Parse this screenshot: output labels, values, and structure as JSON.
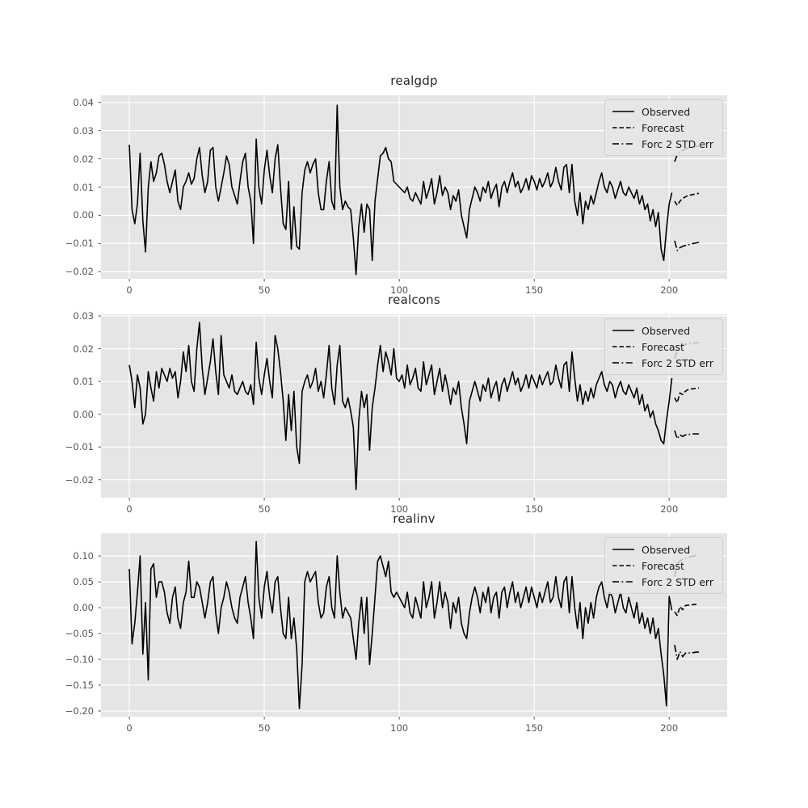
{
  "figure": {
    "background": "#ffffff",
    "axes_background": "#e5e5e5",
    "grid_color": "#ffffff",
    "tick_label_color": "#555555",
    "title_color": "#262626",
    "line_color": "#000000",
    "legend_labels": [
      "Observed",
      "Forecast",
      "Forc 2 STD err"
    ]
  },
  "chart_data": [
    {
      "type": "line",
      "title": "realgdp",
      "xlabel": "",
      "ylabel": "",
      "grid": true,
      "legend": [
        "Observed",
        "Forecast",
        "Forc 2 STD err"
      ],
      "legend_position": "upper right",
      "x_ticks": [
        0,
        50,
        100,
        150,
        200
      ],
      "y_ticks": [
        0.04,
        0.03,
        0.02,
        0.01,
        0.0,
        -0.01,
        -0.02
      ],
      "xlim": [
        -10.5,
        221.5
      ],
      "ylim": [
        -0.0225,
        0.0425
      ],
      "series": [
        {
          "name": "Observed",
          "style": "solid",
          "x_start": 0,
          "values": [
            0.025,
            0.002,
            -0.003,
            0.004,
            0.022,
            -0.002,
            -0.013,
            0.01,
            0.019,
            0.012,
            0.015,
            0.021,
            0.022,
            0.018,
            0.012,
            0.008,
            0.012,
            0.016,
            0.005,
            0.002,
            0.01,
            0.012,
            0.015,
            0.011,
            0.013,
            0.02,
            0.024,
            0.014,
            0.008,
            0.012,
            0.023,
            0.024,
            0.01,
            0.005,
            0.01,
            0.015,
            0.021,
            0.018,
            0.01,
            0.007,
            0.004,
            0.012,
            0.019,
            0.022,
            0.01,
            0.005,
            -0.01,
            0.027,
            0.01,
            0.004,
            0.016,
            0.023,
            0.014,
            0.008,
            0.02,
            0.025,
            0.01,
            -0.003,
            -0.005,
            0.012,
            -0.012,
            0.003,
            -0.011,
            -0.012,
            0.008,
            0.016,
            0.019,
            0.015,
            0.018,
            0.02,
            0.008,
            0.002,
            0.002,
            0.012,
            0.019,
            0.005,
            0.002,
            0.039,
            0.01,
            0.002,
            0.005,
            0.003,
            0.002,
            -0.008,
            -0.021,
            -0.004,
            0.004,
            -0.006,
            0.004,
            0.002,
            -0.016,
            0.005,
            0.013,
            0.021,
            0.022,
            0.024,
            0.02,
            0.019,
            0.012,
            0.011,
            0.01,
            0.009,
            0.008,
            0.01,
            0.006,
            0.005,
            0.008,
            0.006,
            0.004,
            0.012,
            0.006,
            0.009,
            0.013,
            0.004,
            0.008,
            0.014,
            0.007,
            0.01,
            0.008,
            0.002,
            0.007,
            0.005,
            0.009,
            0.0,
            -0.004,
            -0.008,
            0.002,
            0.006,
            0.01,
            0.008,
            0.005,
            0.01,
            0.008,
            0.012,
            0.006,
            0.009,
            0.011,
            0.003,
            0.01,
            0.012,
            0.008,
            0.012,
            0.015,
            0.01,
            0.012,
            0.008,
            0.01,
            0.013,
            0.009,
            0.014,
            0.012,
            0.009,
            0.013,
            0.01,
            0.012,
            0.015,
            0.01,
            0.012,
            0.017,
            0.012,
            0.009,
            0.017,
            0.018,
            0.008,
            0.018,
            0.005,
            0.0,
            0.008,
            -0.003,
            0.005,
            0.002,
            0.007,
            0.004,
            0.008,
            0.012,
            0.015,
            0.01,
            0.008,
            0.012,
            0.01,
            0.006,
            0.009,
            0.012,
            0.008,
            0.007,
            0.01,
            0.008,
            0.006,
            0.009,
            0.004,
            0.007,
            0.002,
            0.004,
            -0.002,
            0.002,
            -0.004,
            0.001,
            -0.012,
            -0.016,
            -0.005,
            0.004,
            0.008
          ]
        },
        {
          "name": "Forecast",
          "style": "dashed",
          "x_start": 202,
          "values": [
            0.005,
            0.0035,
            0.005,
            0.006,
            0.0065,
            0.007,
            0.0072,
            0.0074,
            0.0076,
            0.0078
          ]
        },
        {
          "name": "Forc 2 STD err upper",
          "style": "dashdot",
          "x_start": 202,
          "values": [
            0.019,
            0.0215,
            0.0225,
            0.023,
            0.0235,
            0.0238,
            0.024,
            0.0242,
            0.0244,
            0.0246
          ]
        },
        {
          "name": "Forc 2 STD err lower",
          "style": "dashdot",
          "x_start": 202,
          "values": [
            -0.009,
            -0.0125,
            -0.0115,
            -0.011,
            -0.0107,
            -0.0105,
            -0.0102,
            -0.01,
            -0.0098,
            -0.0096
          ]
        }
      ]
    },
    {
      "type": "line",
      "title": "realcons",
      "xlabel": "",
      "ylabel": "",
      "grid": true,
      "legend": [
        "Observed",
        "Forecast",
        "Forc 2 STD err"
      ],
      "legend_position": "upper right",
      "x_ticks": [
        0,
        50,
        100,
        150,
        200
      ],
      "y_ticks": [
        0.03,
        0.02,
        0.01,
        0.0,
        -0.01,
        -0.02
      ],
      "xlim": [
        -10.5,
        221.5
      ],
      "ylim": [
        -0.0255,
        0.0305
      ],
      "series": [
        {
          "name": "Observed",
          "style": "solid",
          "x_start": 0,
          "values": [
            0.015,
            0.01,
            0.002,
            0.012,
            0.008,
            -0.003,
            0.0,
            0.013,
            0.008,
            0.004,
            0.013,
            0.008,
            0.014,
            0.012,
            0.01,
            0.014,
            0.011,
            0.013,
            0.005,
            0.01,
            0.019,
            0.013,
            0.021,
            0.01,
            0.007,
            0.02,
            0.028,
            0.014,
            0.006,
            0.011,
            0.016,
            0.023,
            0.013,
            0.006,
            0.024,
            0.012,
            0.01,
            0.008,
            0.012,
            0.007,
            0.006,
            0.008,
            0.01,
            0.007,
            0.006,
            0.009,
            0.003,
            0.022,
            0.011,
            0.006,
            0.012,
            0.017,
            0.01,
            0.005,
            0.024,
            0.02,
            0.013,
            0.004,
            -0.008,
            0.006,
            -0.005,
            0.007,
            -0.01,
            -0.015,
            0.007,
            0.01,
            0.012,
            0.008,
            0.01,
            0.014,
            0.007,
            0.01,
            0.005,
            0.012,
            0.021,
            0.008,
            0.003,
            0.015,
            0.021,
            0.004,
            0.002,
            0.005,
            0.001,
            -0.004,
            -0.023,
            -0.002,
            0.007,
            0.002,
            0.006,
            -0.011,
            0.002,
            0.008,
            0.015,
            0.021,
            0.013,
            0.019,
            0.016,
            0.012,
            0.02,
            0.011,
            0.01,
            0.012,
            0.008,
            0.015,
            0.009,
            0.011,
            0.014,
            0.008,
            0.007,
            0.016,
            0.009,
            0.012,
            0.015,
            0.006,
            0.01,
            0.014,
            0.007,
            0.012,
            0.008,
            0.003,
            0.008,
            0.006,
            0.01,
            0.002,
            -0.003,
            -0.009,
            0.004,
            0.007,
            0.01,
            0.007,
            0.004,
            0.009,
            0.007,
            0.011,
            0.005,
            0.008,
            0.01,
            0.004,
            0.009,
            0.011,
            0.007,
            0.01,
            0.013,
            0.009,
            0.011,
            0.007,
            0.009,
            0.012,
            0.008,
            0.012,
            0.01,
            0.008,
            0.012,
            0.009,
            0.011,
            0.013,
            0.009,
            0.01,
            0.015,
            0.011,
            0.008,
            0.015,
            0.016,
            0.007,
            0.019,
            0.011,
            0.004,
            0.009,
            0.003,
            0.007,
            0.004,
            0.008,
            0.005,
            0.009,
            0.011,
            0.013,
            0.009,
            0.007,
            0.01,
            0.009,
            0.005,
            0.008,
            0.01,
            0.007,
            0.006,
            0.009,
            0.007,
            0.005,
            0.008,
            0.003,
            0.006,
            0.001,
            0.003,
            -0.001,
            0.001,
            -0.003,
            -0.005,
            -0.008,
            -0.009,
            -0.002,
            0.004,
            0.011
          ]
        },
        {
          "name": "Forecast",
          "style": "dashed",
          "x_start": 202,
          "values": [
            0.005,
            0.0035,
            0.0065,
            0.006,
            0.007,
            0.0075,
            0.0077,
            0.0078,
            0.0079,
            0.008
          ]
        },
        {
          "name": "Forc 2 STD err upper",
          "style": "dashdot",
          "x_start": 202,
          "values": [
            0.017,
            0.0195,
            0.0205,
            0.021,
            0.0213,
            0.0215,
            0.0216,
            0.0217,
            0.0218,
            0.0219
          ]
        },
        {
          "name": "Forc 2 STD err lower",
          "style": "dashdot",
          "x_start": 202,
          "values": [
            -0.005,
            -0.0075,
            -0.0063,
            -0.0068,
            -0.0063,
            -0.0062,
            -0.0061,
            -0.006,
            -0.006,
            -0.006
          ]
        }
      ]
    },
    {
      "type": "line",
      "title": "realinv",
      "xlabel": "",
      "ylabel": "",
      "grid": true,
      "legend": [
        "Observed",
        "Forecast",
        "Forc 2 STD err"
      ],
      "legend_position": "upper right",
      "x_ticks": [
        0,
        50,
        100,
        150,
        200
      ],
      "y_ticks": [
        0.1,
        0.05,
        0.0,
        -0.05,
        -0.1,
        -0.15,
        -0.2
      ],
      "xlim": [
        -10.5,
        221.5
      ],
      "ylim": [
        -0.211,
        0.144
      ],
      "series": [
        {
          "name": "Observed",
          "style": "solid",
          "x_start": 0,
          "values": [
            0.075,
            -0.07,
            -0.03,
            0.03,
            0.1,
            -0.09,
            0.01,
            -0.14,
            0.075,
            0.085,
            0.02,
            0.05,
            0.05,
            0.03,
            -0.01,
            -0.03,
            0.02,
            0.04,
            -0.02,
            -0.04,
            0.01,
            0.03,
            0.09,
            0.02,
            0.02,
            0.05,
            0.04,
            0.01,
            -0.02,
            0.01,
            0.05,
            0.06,
            -0.01,
            -0.05,
            0.0,
            0.02,
            0.05,
            0.03,
            0.0,
            -0.02,
            -0.03,
            0.02,
            0.04,
            0.06,
            0.01,
            -0.02,
            -0.06,
            0.128,
            0.02,
            -0.02,
            0.04,
            0.07,
            0.02,
            -0.01,
            0.05,
            0.06,
            0.0,
            -0.05,
            -0.06,
            0.02,
            -0.06,
            -0.02,
            -0.08,
            -0.195,
            -0.11,
            0.05,
            0.07,
            0.05,
            0.06,
            0.07,
            0.01,
            -0.02,
            -0.01,
            0.04,
            0.06,
            0.0,
            -0.02,
            0.1,
            0.03,
            -0.02,
            0.0,
            -0.01,
            -0.02,
            -0.06,
            -0.1,
            -0.03,
            0.02,
            -0.05,
            0.02,
            -0.11,
            -0.05,
            0.02,
            0.09,
            0.1,
            0.08,
            0.06,
            0.09,
            0.03,
            0.02,
            0.03,
            0.02,
            0.01,
            0.0,
            0.03,
            -0.01,
            -0.02,
            0.02,
            0.0,
            -0.02,
            0.05,
            0.0,
            0.02,
            0.05,
            -0.02,
            0.01,
            0.05,
            0.0,
            0.03,
            0.01,
            -0.04,
            0.01,
            -0.01,
            0.02,
            -0.03,
            -0.05,
            -0.06,
            -0.01,
            0.02,
            0.04,
            0.02,
            -0.01,
            0.03,
            0.01,
            0.04,
            -0.01,
            0.02,
            0.03,
            -0.02,
            0.03,
            0.04,
            0.0,
            0.03,
            0.05,
            0.01,
            0.03,
            0.0,
            0.02,
            0.04,
            0.01,
            0.04,
            0.02,
            0.0,
            0.03,
            0.01,
            0.03,
            0.05,
            0.01,
            0.02,
            0.06,
            0.02,
            0.0,
            0.05,
            0.06,
            -0.01,
            0.06,
            0.0,
            -0.04,
            0.01,
            -0.06,
            0.0,
            -0.03,
            0.01,
            -0.02,
            0.02,
            0.04,
            0.05,
            0.02,
            0.0,
            0.03,
            0.02,
            -0.01,
            0.01,
            0.03,
            0.0,
            -0.01,
            0.02,
            0.0,
            -0.02,
            0.01,
            -0.03,
            -0.01,
            -0.04,
            -0.02,
            -0.05,
            -0.02,
            -0.06,
            -0.04,
            -0.09,
            -0.13,
            -0.19,
            0.022,
            -0.005
          ]
        },
        {
          "name": "Forecast",
          "style": "dashed",
          "x_start": 202,
          "values": [
            -0.008,
            -0.015,
            0.002,
            -0.004,
            0.004,
            0.005,
            0.005,
            0.006,
            0.006,
            0.006
          ]
        },
        {
          "name": "Forc 2 STD err upper",
          "style": "dashdot",
          "x_start": 202,
          "values": [
            0.06,
            0.085,
            0.09,
            0.094,
            0.096,
            0.098,
            0.099,
            0.1,
            0.1,
            0.101
          ]
        },
        {
          "name": "Forc 2 STD err lower",
          "style": "dashdot",
          "x_start": 202,
          "values": [
            -0.072,
            -0.1,
            -0.085,
            -0.095,
            -0.088,
            -0.088,
            -0.087,
            -0.087,
            -0.086,
            -0.086
          ]
        }
      ]
    }
  ]
}
